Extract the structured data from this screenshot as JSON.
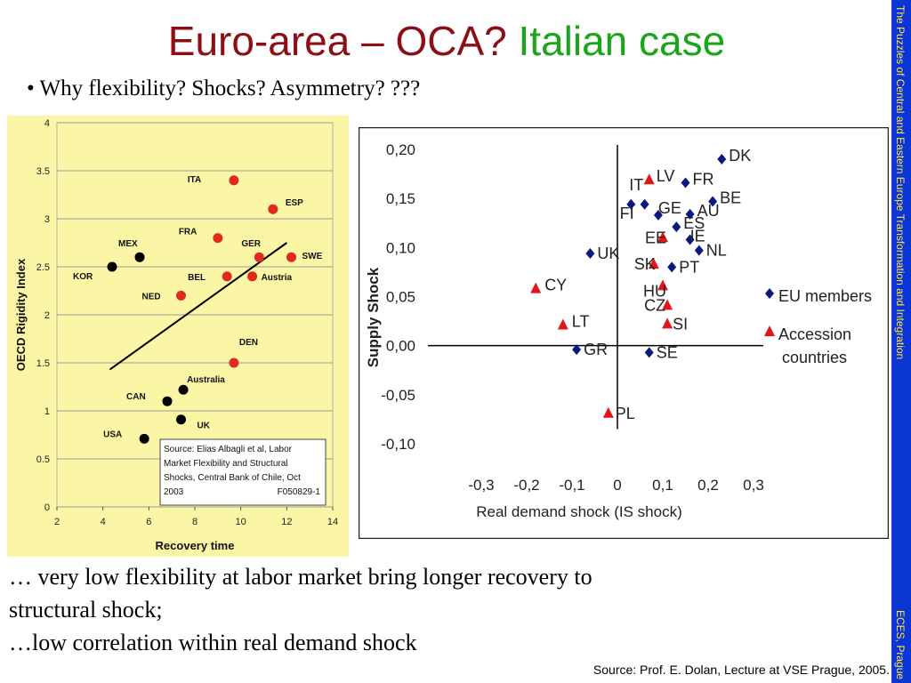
{
  "slide": {
    "title_part1": "Euro-area – OCA?",
    "title_part2": "Italian case",
    "bullet": "• Why flexibility? Shocks? Asymmetry? ???",
    "bottom_line1": "… very low flexibility at labor market bring longer recovery to",
    "bottom_line2": "structural shock;",
    "bottom_line3": "…low correlation within real demand shock",
    "source": "Source: Prof. E. Dolan, Lecture at VSE Prague, 2005.",
    "sidebar_top": "The Puzzles of Central and Eastern Europe Transformation and Integration",
    "sidebar_bottom": "ECES, Prague"
  },
  "colors": {
    "title_red": "#8b0f14",
    "title_green": "#1aa51a",
    "sidebar_blue": "#0b36d4",
    "sidebar_text": "#ffe04d",
    "chart1_bg": "#fbf6a6",
    "chart1_red": "#e02a20",
    "chart1_black": "#000000",
    "chart2_blue": "#0a1a7a",
    "chart2_red": "#e0161a"
  },
  "chart_data": [
    {
      "type": "scatter",
      "title": "",
      "xlabel": "Recovery time",
      "ylabel": "OECD Rigidity Index",
      "xlim": [
        2,
        14
      ],
      "ylim": [
        0,
        4
      ],
      "xticks": [
        "2",
        "4",
        "6",
        "8",
        "10",
        "12",
        "14"
      ],
      "yticks": [
        "0",
        "0.5",
        "1",
        "1.5",
        "2",
        "2.5",
        "3",
        "3.5",
        "4"
      ],
      "grid": true,
      "series": [
        {
          "color": "#e02a20",
          "points": [
            {
              "label": "ITA",
              "x": 9.7,
              "y": 3.4
            },
            {
              "label": "ESP",
              "x": 11.4,
              "y": 3.1
            },
            {
              "label": "FRA",
              "x": 9.0,
              "y": 2.8
            },
            {
              "label": "GER",
              "x": 10.8,
              "y": 2.6
            },
            {
              "label": "SWE",
              "x": 12.2,
              "y": 2.6
            },
            {
              "label": "BEL",
              "x": 9.4,
              "y": 2.4
            },
            {
              "label": "Austria",
              "x": 10.5,
              "y": 2.4
            },
            {
              "label": "NED",
              "x": 7.4,
              "y": 2.2
            },
            {
              "label": "DEN",
              "x": 9.7,
              "y": 1.5
            }
          ]
        },
        {
          "color": "#000000",
          "points": [
            {
              "label": "MEX",
              "x": 5.6,
              "y": 2.6
            },
            {
              "label": "KOR",
              "x": 4.4,
              "y": 2.5
            },
            {
              "label": "Australia",
              "x": 7.5,
              "y": 1.22
            },
            {
              "label": "CAN",
              "x": 6.8,
              "y": 1.1
            },
            {
              "label": "UK",
              "x": 7.4,
              "y": 0.91
            },
            {
              "label": "USA",
              "x": 5.8,
              "y": 0.71
            }
          ]
        }
      ],
      "trendline": [
        [
          4.3,
          1.43
        ],
        [
          12.0,
          2.75
        ]
      ],
      "annotation": [
        "Source: Elias Albagli et al, Labor",
        "Market Flexibility and Structural",
        "Shocks, Central Bank of Chile, Oct",
        "2003",
        "F050829-1"
      ]
    },
    {
      "type": "scatter",
      "title": "",
      "xlabel": "Real demand shock (IS shock)",
      "ylabel": "Supply Shock",
      "xlim": [
        -0.3,
        0.3
      ],
      "ylim": [
        -0.1,
        0.2
      ],
      "xticks": [
        "-0,3",
        "-0,2",
        "-0,1",
        "0",
        "0,1",
        "0,2",
        "0,3"
      ],
      "yticks": [
        "0,20",
        "0,15",
        "0,10",
        "0,05",
        "0,00",
        "-0,05",
        "-0,10"
      ],
      "grid": false,
      "legend": {
        "placement": "right",
        "entries": [
          "EU members",
          "Accession countries"
        ]
      },
      "series": [
        {
          "name": "EU members",
          "marker": "diamond",
          "color": "#0a1a7a",
          "points": [
            {
              "label": "DK",
              "x": 0.23,
              "y": 0.19
            },
            {
              "label": "FR",
              "x": 0.15,
              "y": 0.166
            },
            {
              "label": "IT",
              "x": 0.03,
              "y": 0.144
            },
            {
              "label": "BE",
              "x": 0.21,
              "y": 0.147
            },
            {
              "label": "AU",
              "x": 0.16,
              "y": 0.134
            },
            {
              "label": "GE",
              "x": 0.09,
              "y": 0.133
            },
            {
              "label": "FI",
              "x": 0.06,
              "y": 0.144
            },
            {
              "label": "ES",
              "x": 0.13,
              "y": 0.121
            },
            {
              "label": "IE",
              "x": 0.16,
              "y": 0.108
            },
            {
              "label": "NL",
              "x": 0.18,
              "y": 0.097
            },
            {
              "label": "UK",
              "x": -0.06,
              "y": 0.094
            },
            {
              "label": "PT",
              "x": 0.12,
              "y": 0.08
            },
            {
              "label": "GR",
              "x": -0.09,
              "y": -0.004
            },
            {
              "label": "SE",
              "x": 0.07,
              "y": -0.007
            }
          ]
        },
        {
          "name": "Accession countries",
          "marker": "triangle",
          "color": "#e0161a",
          "points": [
            {
              "label": "LV",
              "x": 0.07,
              "y": 0.169
            },
            {
              "label": "EE",
              "x": 0.1,
              "y": 0.11
            },
            {
              "label": "SK",
              "x": 0.08,
              "y": 0.083
            },
            {
              "label": "HU",
              "x": 0.1,
              "y": 0.061
            },
            {
              "label": "CZ",
              "x": 0.11,
              "y": 0.041
            },
            {
              "label": "SI",
              "x": 0.11,
              "y": 0.022
            },
            {
              "label": "CY",
              "x": -0.18,
              "y": 0.058
            },
            {
              "label": "LT",
              "x": -0.12,
              "y": 0.021
            },
            {
              "label": "PL",
              "x": -0.02,
              "y": -0.069
            }
          ]
        }
      ]
    }
  ]
}
